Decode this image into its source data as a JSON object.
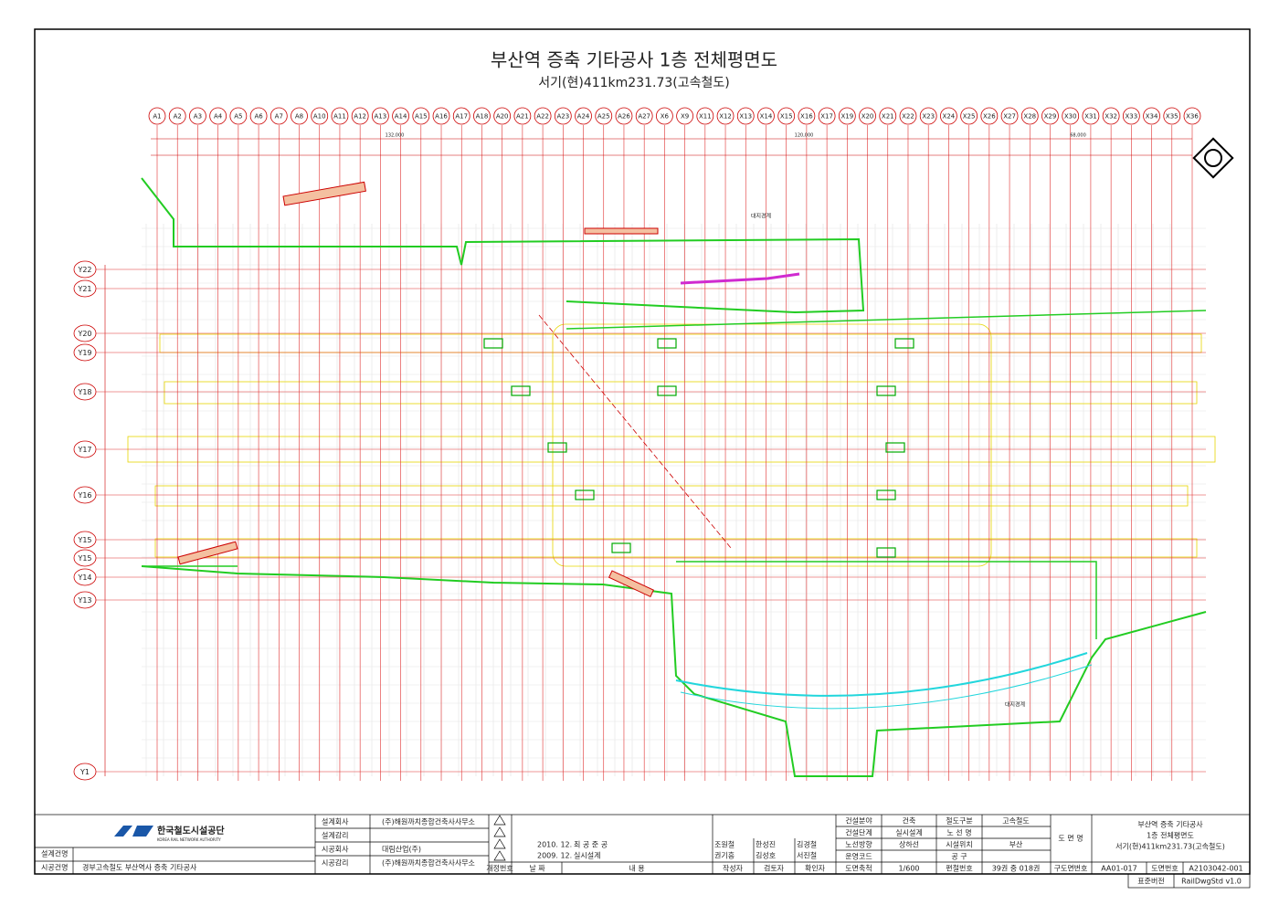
{
  "header": {
    "title": "부산역 증축 기타공사 1층 전체평면도",
    "subtitle": "서기(현)411km231.73(고속철도)"
  },
  "grid": {
    "columns": [
      "A1",
      "A2",
      "A3",
      "A4",
      "A5",
      "A6",
      "A7",
      "A8",
      "A10",
      "A11",
      "A12",
      "A13",
      "A14",
      "A15",
      "A16",
      "A17",
      "A18",
      "A20",
      "A21",
      "A22",
      "A23",
      "A24",
      "A25",
      "A26",
      "A27",
      "X6",
      "X9",
      "X11",
      "X12",
      "X13",
      "X14",
      "X15",
      "X16",
      "X17",
      "X19",
      "X20",
      "X21",
      "X22",
      "X23",
      "X24",
      "X25",
      "X26",
      "X27",
      "X28",
      "X29",
      "X30",
      "X31",
      "X32",
      "X33",
      "X34",
      "X35",
      "X36"
    ],
    "rows": [
      "Y22",
      "Y21",
      "Y20",
      "Y19",
      "Y18",
      "Y17",
      "Y16",
      "Y15",
      "Y15",
      "Y14",
      "Y13",
      "Y1"
    ],
    "dimensions": [
      "132,000",
      "120,000",
      "68,000"
    ]
  },
  "annotations": [
    "대지경계",
    "대지경계"
  ],
  "title_block": {
    "org": "한국철도시설공단",
    "org_en": "KOREA RAIL NETWORK AUTHORITY",
    "design_project_label": "설계건명",
    "construction_project_label": "시공건명",
    "construction_project": "경부고속철도 부산역사 증축 기타공사",
    "design_company_label": "설계회사",
    "design_company": "(주)해원까치종합건축사사무소",
    "design_supervision_label": "설계감리",
    "contractor_label": "시공회사",
    "contractor": "대림산업(주)",
    "construction_supervision_label": "시공감리",
    "construction_supervision": "(주)해원까치종합건축사사무소",
    "revisions": [
      {
        "date": "2010. 12.",
        "content": "최 공 준 공"
      },
      {
        "date": "2009. 12.",
        "content": "실시설계"
      }
    ],
    "revision_headers": [
      "개정번호",
      "날 짜",
      "내 용",
      "작성자",
      "검토자",
      "확인자"
    ],
    "names": [
      "조원철",
      "한성진",
      "김경철",
      "권기흥",
      "김성호",
      "서진철"
    ],
    "fields": [
      [
        "건설분야",
        "건축",
        "철도구분",
        "고속철도"
      ],
      [
        "건설단계",
        "실시설계",
        "노 선 명",
        ""
      ],
      [
        "노선방향",
        "상하선",
        "시설위치",
        "부산"
      ],
      [
        "운영코드",
        "",
        "공 구",
        ""
      ],
      [
        "도면축척",
        "1/600",
        "편철번호",
        "39권 중 018권"
      ]
    ],
    "drawing_name_label": "도 면 명",
    "drawing_name": [
      "부산역 증축 기타공사",
      "1층 전체평면도",
      "서기(현)411km231.73(고속철도)"
    ],
    "old_number_label": "구도면번호",
    "old_number": "AA01-017",
    "number_label": "도면번호",
    "number": "A2103042-001",
    "std_label": "표준버전",
    "std": "RailDwgStd v1.0"
  }
}
